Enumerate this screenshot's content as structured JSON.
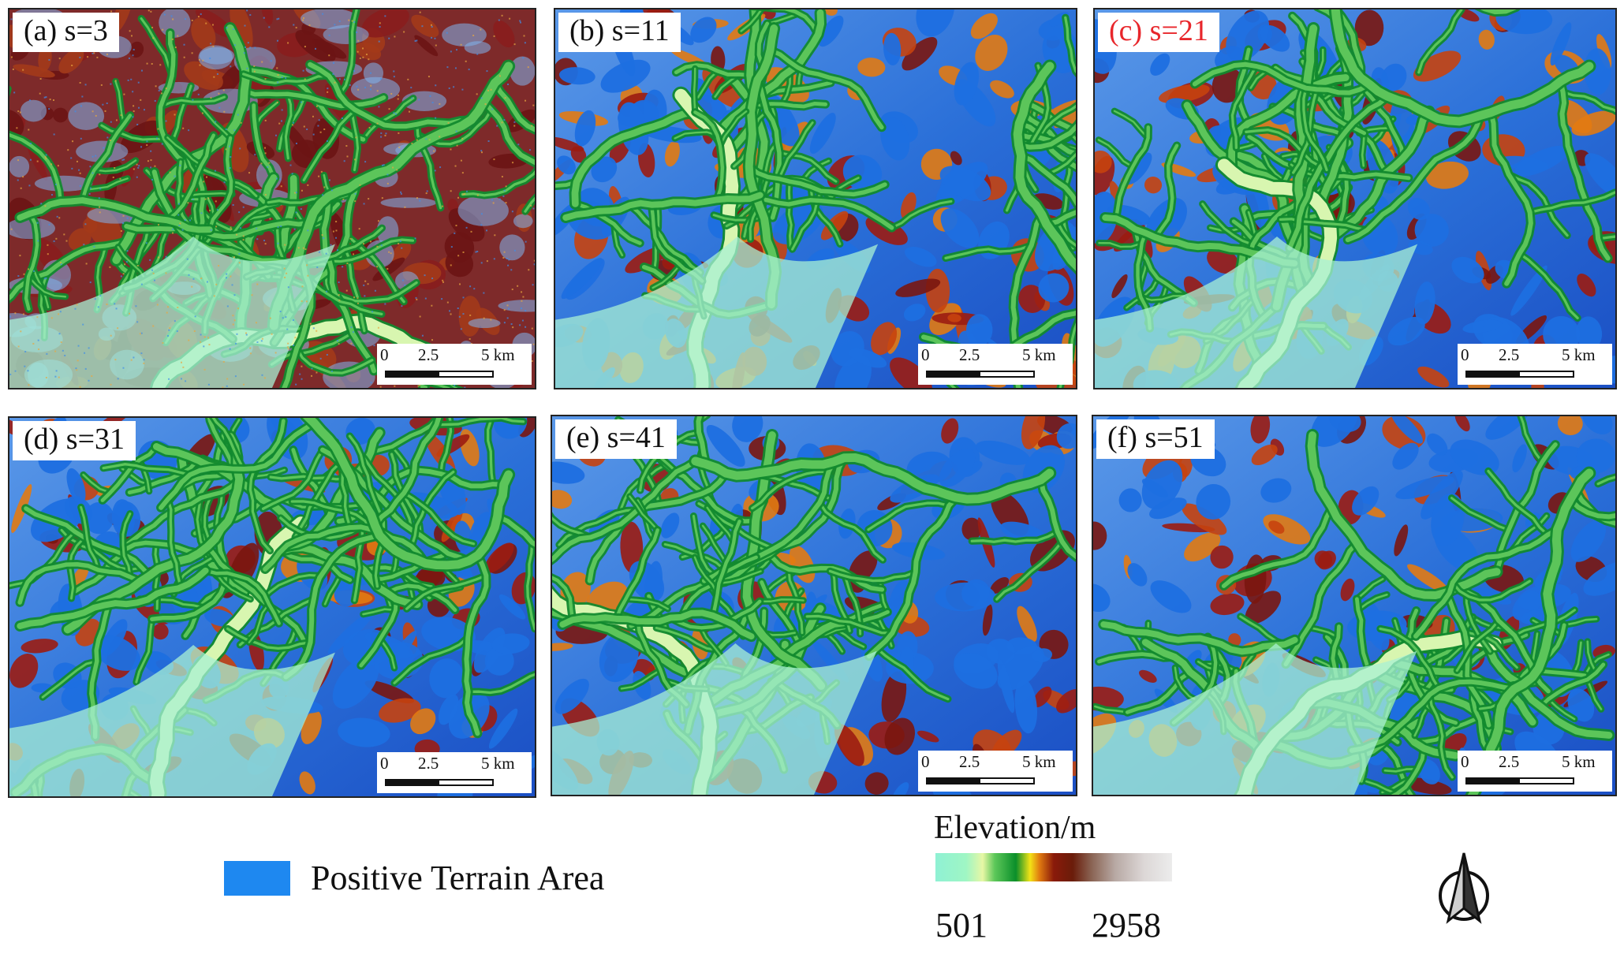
{
  "panels": [
    {
      "id": "a",
      "label": "(a) s=3",
      "label_color": "#111111"
    },
    {
      "id": "b",
      "label": "(b) s=11",
      "label_color": "#111111"
    },
    {
      "id": "c",
      "label": "(c) s=21",
      "label_color": "#e8262b"
    },
    {
      "id": "d",
      "label": "(d) s=31",
      "label_color": "#111111"
    },
    {
      "id": "e",
      "label": "(e) s=41",
      "label_color": "#111111"
    },
    {
      "id": "f",
      "label": "(f) s=51",
      "label_color": "#111111"
    }
  ],
  "scalebar": {
    "tick_0": "0",
    "tick_mid": "2.5",
    "tick_end": "5 km"
  },
  "legend": {
    "positive_label": "Positive Terrain Area",
    "positive_color": "#1e88f0",
    "elevation_title": "Elevation/m",
    "elevation_min": "501",
    "elevation_max": "2958"
  }
}
